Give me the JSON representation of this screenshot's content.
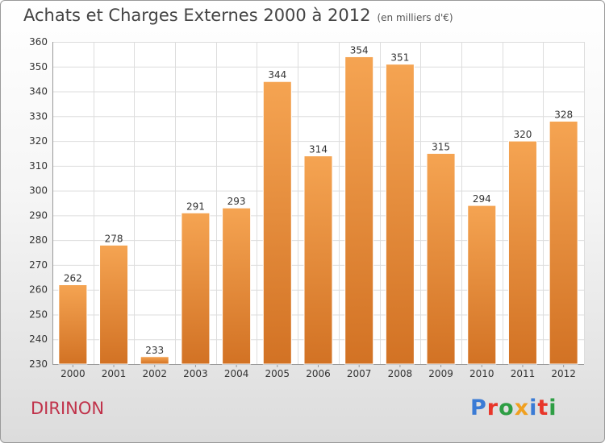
{
  "title": "Achats et Charges Externes 2000 à 2012",
  "unit": "(en milliers d'€)",
  "commune": "DIRINON",
  "brand": {
    "text": "Proxiti",
    "colors": [
      "#3a7bd5",
      "#e8362a",
      "#2e9e44",
      "#f0a020",
      "#3a7bd5",
      "#e8362a",
      "#2e9e44"
    ]
  },
  "colors": {
    "bar_top": "#f5a452",
    "bar_bottom": "#d27224",
    "commune": "#c0324a"
  },
  "chart_data": {
    "type": "bar",
    "categories": [
      "2000",
      "2001",
      "2002",
      "2003",
      "2004",
      "2005",
      "2006",
      "2007",
      "2008",
      "2009",
      "2010",
      "2011",
      "2012"
    ],
    "values": [
      262,
      278,
      233,
      291,
      293,
      344,
      314,
      354,
      351,
      315,
      294,
      320,
      328
    ],
    "ylim": [
      230,
      360
    ],
    "yticks": [
      230,
      240,
      250,
      260,
      270,
      280,
      290,
      300,
      310,
      320,
      330,
      340,
      350,
      360
    ],
    "grid": true,
    "legend": "none"
  }
}
